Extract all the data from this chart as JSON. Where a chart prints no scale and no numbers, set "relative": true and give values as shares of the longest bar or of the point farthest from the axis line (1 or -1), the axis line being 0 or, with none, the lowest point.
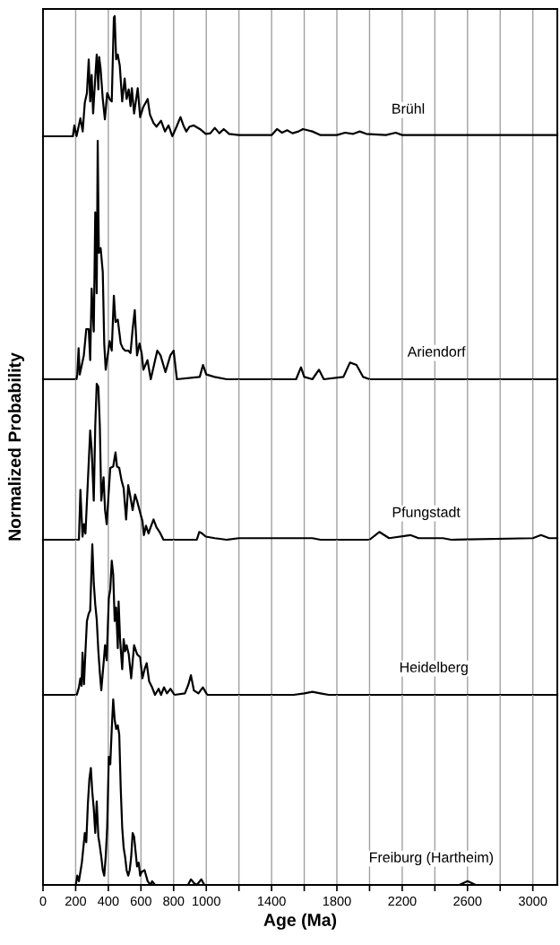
{
  "chart_data": [
    {
      "type": "line",
      "relative": true,
      "xlim": [
        0,
        3150
      ],
      "xticks": [
        0,
        200,
        400,
        600,
        800,
        1000,
        {
          "value": 1200,
          "label": null
        },
        1400,
        {
          "value": 1600,
          "label": null
        },
        1800,
        {
          "value": 2000,
          "label": null
        },
        2200,
        {
          "value": 2400,
          "label": null
        },
        2600,
        {
          "value": 2800,
          "label": null
        },
        3000
      ],
      "grid": "x",
      "tick_labels": false,
      "series": [
        {
          "name": "Brühl",
          "color": "#000000",
          "x": [
            0,
            183,
            192,
            205,
            229,
            243,
            256,
            269,
            280,
            289,
            298,
            307,
            320,
            329,
            339,
            344,
            353,
            366,
            379,
            393,
            408,
            421,
            434,
            439,
            448,
            458,
            470,
            485,
            500,
            512,
            525,
            536,
            544,
            558,
            580,
            595,
            613,
            641,
            655,
            677,
            695,
            723,
            747,
            769,
            792,
            818,
            842,
            860,
            878,
            897,
            924,
            961,
            997,
            1025,
            1052,
            1080,
            1107,
            1140,
            1199,
            1400,
            1433,
            1464,
            1495,
            1528,
            1565,
            1592,
            1620,
            1650,
            1700,
            1800,
            1850,
            1900,
            1940,
            1980,
            2100,
            2160,
            2200,
            3150
          ],
          "values": [
            0,
            0,
            0.09,
            0,
            0.15,
            0.04,
            0.28,
            0.36,
            0.64,
            0.29,
            0.51,
            0.19,
            0.49,
            0.68,
            0.39,
            0.66,
            0.56,
            0.31,
            0.14,
            0.36,
            0.31,
            0.29,
            0.99,
            1.0,
            0.64,
            0.68,
            0.59,
            0.29,
            0.48,
            0.31,
            0.39,
            0.25,
            0.4,
            0.19,
            0.4,
            0.16,
            0.24,
            0.31,
            0.18,
            0.11,
            0.08,
            0.13,
            0.04,
            0.09,
            0,
            0.08,
            0.16,
            0.09,
            0.04,
            0.08,
            0.09,
            0.06,
            0.02,
            0.025,
            0.07,
            0.025,
            0.06,
            0.02,
            0.01,
            0.01,
            0.06,
            0.03,
            0.05,
            0.025,
            0.04,
            0.06,
            0.05,
            0.04,
            0.01,
            0.01,
            0.03,
            0.02,
            0.04,
            0.02,
            0.01,
            0.03,
            0.01,
            0.01
          ]
        }
      ]
    },
    {
      "type": "line",
      "relative": true,
      "xlim": [
        0,
        3150
      ],
      "xticks": [
        0,
        200,
        400,
        600,
        800,
        1000,
        {
          "value": 1200,
          "label": null
        },
        1400,
        {
          "value": 1600,
          "label": null
        },
        1800,
        {
          "value": 2000,
          "label": null
        },
        2200,
        {
          "value": 2400,
          "label": null
        },
        2600,
        {
          "value": 2800,
          "label": null
        },
        3000
      ],
      "grid": "x",
      "tick_labels": false,
      "series": [
        {
          "name": "Ariendorf",
          "color": "#000000",
          "x": [
            0,
            205,
            210,
            218,
            225,
            250,
            265,
            280,
            289,
            298,
            311,
            320,
            329,
            335,
            342,
            353,
            366,
            375,
            384,
            408,
            421,
            434,
            444,
            458,
            476,
            489,
            503,
            522,
            536,
            549,
            562,
            576,
            591,
            604,
            615,
            640,
            660,
            680,
            700,
            720,
            750,
            780,
            800,
            820,
            960,
            980,
            1000,
            1050,
            1125,
            1550,
            1580,
            1600,
            1650,
            1690,
            1720,
            1840,
            1880,
            1920,
            1960,
            2000,
            3150
          ],
          "values": [
            0,
            0,
            0.02,
            0.13,
            0.02,
            0.1,
            0.21,
            0.21,
            0.08,
            0.38,
            0.2,
            0.7,
            0.36,
            1.0,
            0.53,
            0.55,
            0.45,
            0.15,
            0.04,
            0.16,
            0.12,
            0.35,
            0.24,
            0.25,
            0.15,
            0.13,
            0.12,
            0.12,
            0.11,
            0.21,
            0.29,
            0.1,
            0.15,
            0.11,
            0.04,
            0.08,
            0,
            0.06,
            0.12,
            0.1,
            0.03,
            0.1,
            0.12,
            0,
            0.01,
            0.06,
            0.02,
            0.01,
            0,
            0,
            0.05,
            0.01,
            0,
            0.04,
            0,
            0.01,
            0.07,
            0.06,
            0.01,
            0,
            0
          ]
        }
      ]
    },
    {
      "type": "line",
      "relative": true,
      "ylabel": "Normalized Probability",
      "xlim": [
        0,
        3150
      ],
      "xticks": [
        0,
        200,
        400,
        600,
        800,
        1000,
        {
          "value": 1200,
          "label": null
        },
        1400,
        {
          "value": 1600,
          "label": null
        },
        1800,
        {
          "value": 2000,
          "label": null
        },
        2200,
        {
          "value": 2400,
          "label": null
        },
        2600,
        {
          "value": 2800,
          "label": null
        },
        3000
      ],
      "grid": "x",
      "tick_labels": false,
      "series": [
        {
          "name": "Pfungstadt",
          "color": "#000000",
          "x": [
            0,
            210,
            220,
            229,
            242,
            251,
            260,
            275,
            289,
            298,
            311,
            320,
            329,
            339,
            348,
            357,
            371,
            380,
            390,
            399,
            412,
            430,
            444,
            453,
            467,
            481,
            494,
            509,
            522,
            536,
            549,
            564,
            576,
            591,
            609,
            618,
            631,
            646,
            659,
            677,
            695,
            714,
            738,
            942,
            957,
            975,
            997,
            1052,
            1125,
            1200,
            1650,
            1700,
            2000,
            2060,
            2120,
            2250,
            2300,
            2450,
            2500,
            3000,
            3050,
            3100,
            3150
          ],
          "values": [
            0,
            0,
            0,
            0.32,
            0.02,
            0.1,
            0.04,
            0.38,
            0.7,
            0.58,
            0.25,
            0.73,
            1.0,
            0.98,
            0.73,
            0.25,
            0.4,
            0.19,
            0.1,
            0.25,
            0.46,
            0.47,
            0.56,
            0.47,
            0.46,
            0.38,
            0.33,
            0.13,
            0.35,
            0.27,
            0.19,
            0.29,
            0.25,
            0.19,
            0.12,
            0.03,
            0.09,
            0.04,
            0.08,
            0.13,
            0.08,
            0.05,
            0,
            0,
            0.05,
            0.04,
            0.02,
            0.01,
            0,
            0.01,
            0.01,
            0,
            0,
            0.05,
            0.01,
            0.03,
            0.01,
            0.01,
            0,
            0.01,
            0.03,
            0.01,
            0.01
          ]
        }
      ]
    },
    {
      "type": "line",
      "relative": true,
      "xlim": [
        0,
        3150
      ],
      "xticks": [
        0,
        200,
        400,
        600,
        800,
        1000,
        {
          "value": 1200,
          "label": null
        },
        1400,
        {
          "value": 1600,
          "label": null
        },
        1800,
        {
          "value": 2000,
          "label": null
        },
        2200,
        {
          "value": 2400,
          "label": null
        },
        2600,
        {
          "value": 2800,
          "label": null
        },
        3000
      ],
      "grid": "x",
      "tick_labels": false,
      "series": [
        {
          "name": "Heidelberg",
          "color": "#000000",
          "x": [
            0,
            207,
            220,
            229,
            236,
            242,
            251,
            260,
            269,
            280,
            289,
            302,
            311,
            320,
            329,
            339,
            348,
            357,
            371,
            380,
            390,
            403,
            412,
            421,
            430,
            439,
            448,
            458,
            463,
            472,
            485,
            494,
            503,
            512,
            525,
            540,
            558,
            576,
            595,
            609,
            622,
            635,
            650,
            668,
            686,
            708,
            723,
            741,
            759,
            781,
            805,
            869,
            891,
            906,
            924,
            952,
            979,
            1006,
            1535,
            1600,
            1650,
            1700,
            1750,
            3150
          ],
          "values": [
            0,
            0,
            0.05,
            0.11,
            0.06,
            0.28,
            0.07,
            0.29,
            0.49,
            0.54,
            0.56,
            1.0,
            0.74,
            0.6,
            0.5,
            0.29,
            0.15,
            0.03,
            0.21,
            0.33,
            0.23,
            0.64,
            0.7,
            0.89,
            0.8,
            0.49,
            0.58,
            0.31,
            0.62,
            0.37,
            0.17,
            0.37,
            0.29,
            0.33,
            0.27,
            0.11,
            0.33,
            0.27,
            0.25,
            0.11,
            0.17,
            0.21,
            0.09,
            0.05,
            0,
            0.04,
            0,
            0.05,
            0.01,
            0.04,
            0,
            0.01,
            0.07,
            0.13,
            0.03,
            0.01,
            0.05,
            0,
            0,
            0.01,
            0.02,
            0.01,
            0,
            0
          ]
        }
      ]
    },
    {
      "type": "line",
      "relative": true,
      "xlabel": "Age (Ma)",
      "xlim": [
        0,
        3150
      ],
      "xticks": [
        0,
        200,
        400,
        600,
        800,
        1000,
        {
          "value": 1200,
          "label": null
        },
        1400,
        {
          "value": 1600,
          "label": null
        },
        1800,
        {
          "value": 2000,
          "label": null
        },
        2200,
        {
          "value": 2400,
          "label": null
        },
        2600,
        {
          "value": 2800,
          "label": null
        },
        3000
      ],
      "grid": "x",
      "tick_labels": "x",
      "series": [
        {
          "name": "Freiburg (Hartheim)",
          "color": "#000000",
          "x": [
            0,
            201,
            210,
            220,
            229,
            238,
            247,
            256,
            265,
            275,
            284,
            293,
            302,
            311,
            320,
            329,
            339,
            348,
            357,
            366,
            375,
            384,
            393,
            403,
            412,
            421,
            430,
            439,
            448,
            458,
            467,
            476,
            485,
            494,
            503,
            512,
            522,
            531,
            540,
            549,
            558,
            567,
            576,
            586,
            595,
            604,
            622,
            641,
            659,
            668,
            686,
            888,
            906,
            924,
            942,
            970,
            988,
            2550,
            2600,
            2650,
            3150
          ],
          "values": [
            0,
            0,
            0.05,
            0.02,
            0.07,
            0.12,
            0.2,
            0.28,
            0.23,
            0.44,
            0.57,
            0.63,
            0.5,
            0.41,
            0.28,
            0.45,
            0.26,
            0.21,
            0.15,
            0.08,
            0.05,
            0.15,
            0.31,
            0.69,
            0.65,
            0.84,
            1.0,
            0.89,
            0.84,
            0.86,
            0.81,
            0.52,
            0.31,
            0.2,
            0.15,
            0.08,
            0.05,
            0.08,
            0.15,
            0.28,
            0.26,
            0.18,
            0.1,
            0.12,
            0.05,
            0.07,
            0.08,
            0.02,
            0,
            0.02,
            0,
            0,
            0.03,
            0.01,
            0,
            0.03,
            0,
            0,
            0.02,
            0,
            0
          ]
        }
      ]
    }
  ]
}
